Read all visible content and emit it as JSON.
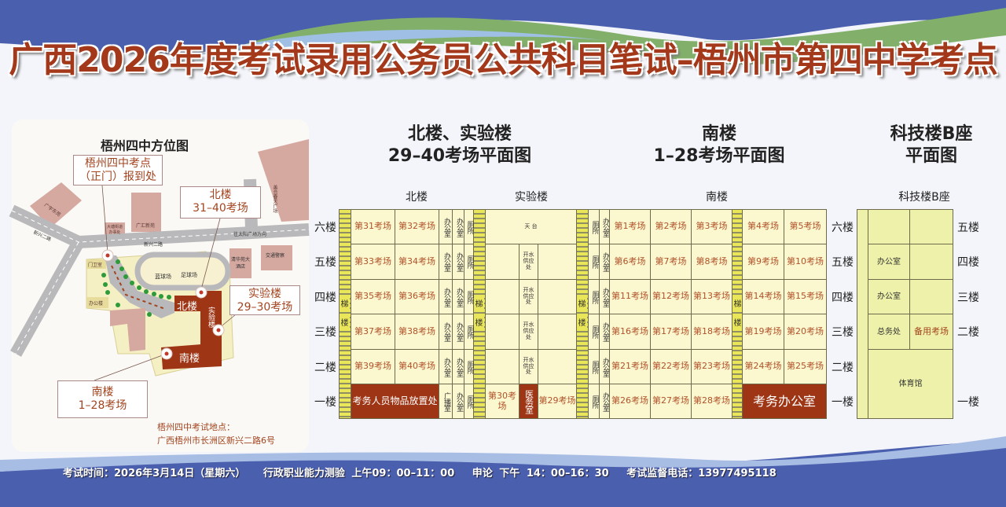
{
  "title": "广西2026年度考试录用公务员公共科目笔试–梧州市第四中学考点",
  "colors": {
    "title": "#a3391a",
    "highlight": "#9e3616",
    "room_text": "#b0522a",
    "cell_bg": "#fbf7cf",
    "tech_bg": "#eef1a9",
    "stairs": "#e9e65a"
  },
  "map": {
    "title": "梧州四中方位图",
    "callouts": {
      "gate": [
        "梧州四中考点",
        "（正门）报到处"
      ],
      "north": [
        "北楼",
        "31–40考场"
      ],
      "lab": [
        "实验楼",
        "29–30考场"
      ],
      "south": [
        "南楼",
        "1–28考场"
      ]
    },
    "places": {
      "guangyu": "广宇东苑",
      "datang": "大塘街道办事处",
      "guanghui": "广汇新苑",
      "meihe": "美合春天广场",
      "direction": "往太阳广场方向",
      "road1": "新兴二路",
      "road2": "新兴二路",
      "qinghua": "清华苑大酒店",
      "police": "交通警察",
      "gatehouse": "门卫室",
      "office": "办公楼",
      "basketball": "蓝球场",
      "football": "足球场",
      "north": "北楼",
      "lab": "实验楼",
      "south": "南楼"
    },
    "address_label": "梧州四中考试地点：",
    "address": "广西梧州市长洲区新兴二路6号"
  },
  "plans": {
    "north_lab_title": [
      "北楼、实验楼",
      "29–40考场平面图"
    ],
    "south_title": [
      "南楼",
      "1–28考场平面图"
    ],
    "tech_title": [
      "科技楼B座",
      "平面图"
    ]
  },
  "floors": [
    "六楼",
    "五楼",
    "四楼",
    "三楼",
    "二楼",
    "一楼"
  ],
  "stair_label": [
    "梯",
    "楼"
  ],
  "north": {
    "label": "北楼",
    "floors": [
      [
        "第31考场",
        "第32考场",
        "办公室",
        "办公室",
        "厕所"
      ],
      [
        "第33考场",
        "第34考场",
        "办公室",
        "办公室",
        "厕所"
      ],
      [
        "第35考场",
        "第36考场",
        "办公室",
        "办公室",
        "厕所"
      ],
      [
        "第37考场",
        "第38考场",
        "办公室",
        "办公室",
        "厕所"
      ],
      [
        "第39考场",
        "第40考场",
        "办公室",
        "办公室",
        "厕所"
      ],
      [
        "考务人员物品放置处",
        "广播室",
        "办公室",
        "厕所"
      ]
    ]
  },
  "lab": {
    "label": "实验楼",
    "roof": "天 台",
    "water": "开水供应处",
    "ground": [
      "第30考场",
      "医务室",
      "第29考场"
    ]
  },
  "south": {
    "label": "南楼",
    "floors": [
      [
        "厕所",
        "办公室",
        "第1考场",
        "第2考场",
        "第3考场",
        "第4考场",
        "第5考场"
      ],
      [
        "厕所",
        "办公室",
        "第6考场",
        "第7考场",
        "第8考场",
        "第9考场",
        "第10考场"
      ],
      [
        "厕所",
        "办公室",
        "第11考场",
        "第12考场",
        "第13考场",
        "第14考场",
        "第15考场"
      ],
      [
        "厕所",
        "办公室",
        "第16考场",
        "第17考场",
        "第18考场",
        "第19考场",
        "第20考场"
      ],
      [
        "厕所",
        "办公室",
        "第21考场",
        "第22考场",
        "第23考场",
        "第24考场",
        "第25考场"
      ],
      [
        "厕所",
        "办公室",
        "第26考场",
        "第27考场",
        "第28考场",
        "考务办公室"
      ]
    ]
  },
  "tech": {
    "label": "科技楼B座",
    "floors": [
      "五楼",
      "四楼",
      "三楼",
      "二楼",
      "一楼"
    ],
    "rooms": {
      "office4": "办公室",
      "office3": "办公室",
      "general": "总务处",
      "backup": "备用考场",
      "gym": "体育馆"
    }
  },
  "footer": {
    "time": "考试时间：2026年3月14日（星期六）",
    "am": "行政职业能力测验 上午09：00–11：00",
    "pm": "申论 下午 14：00–16：30",
    "phone": "考试监督电话：13977495118"
  }
}
